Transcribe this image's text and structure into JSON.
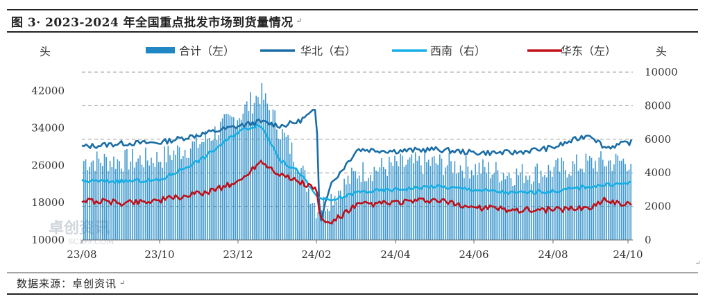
{
  "title": "图 3· 2023-2024 年全国重点批发市场到货量情况",
  "title_mark": "↵",
  "source": "数据来源：卓创资讯",
  "source_mark": "↵",
  "corner_mark": "↵",
  "watermark": {
    "text": "卓创资讯",
    "sub": "SCI99.COM"
  },
  "colors": {
    "total": "#1e87c4",
    "north": "#1a6da6",
    "southwest": "#15aee6",
    "east": "#c00f18",
    "grid": "#9a9a9a",
    "axis": "#666666"
  },
  "chart_data": {
    "type": "bar+line",
    "y_left": {
      "unit": "头",
      "ticks": [
        10000,
        18000,
        26000,
        34000,
        42000
      ],
      "range": [
        10000,
        46000
      ]
    },
    "y_right": {
      "unit": "头",
      "ticks": [
        0,
        2000,
        4000,
        6000,
        8000,
        10000
      ],
      "range": [
        0,
        10000
      ]
    },
    "x": {
      "labels": [
        "23/08",
        "23/10",
        "23/12",
        "24/02",
        "24/04",
        "24/06",
        "24/08",
        "24/10"
      ],
      "start": "2023-08",
      "end": "2024-10"
    },
    "grid": "horizontal dashed",
    "legend": {
      "placement": "top",
      "entries": [
        "合计（左）",
        "华北（右）",
        "西南（右）",
        "华东（左）"
      ]
    },
    "series": [
      {
        "name": "合计（左）",
        "axis": "left",
        "style": "bar",
        "points": [
          [
            "23/08",
            27000
          ],
          [
            "23/09",
            27000
          ],
          [
            "23/10",
            27500
          ],
          [
            "23/11",
            31000
          ],
          [
            "23/12",
            37000
          ],
          [
            "23/12b",
            41500
          ],
          [
            "24/01",
            33000
          ],
          [
            "24/01b",
            26500
          ],
          [
            "24/02",
            16500
          ],
          [
            "24/02b",
            19000
          ],
          [
            "24/03",
            24500
          ],
          [
            "24/04",
            26000
          ],
          [
            "24/05",
            26500
          ],
          [
            "24/06",
            25500
          ],
          [
            "24/07",
            24000
          ],
          [
            "24/08",
            25000
          ],
          [
            "24/09",
            26500
          ],
          [
            "24/10",
            27000
          ]
        ]
      },
      {
        "name": "华北（右）",
        "axis": "right",
        "style": "line",
        "points": [
          [
            "23/08",
            5550
          ],
          [
            "23/09",
            5750
          ],
          [
            "23/10",
            5800
          ],
          [
            "23/11",
            6300
          ],
          [
            "23/12",
            6800
          ],
          [
            "23/12b",
            7050
          ],
          [
            "24/01",
            6800
          ],
          [
            "24/01b",
            7050
          ],
          [
            "24/02",
            7750
          ],
          [
            "24/02a",
            1000
          ],
          [
            "24/02b",
            3200
          ],
          [
            "24/03",
            5400
          ],
          [
            "24/04",
            5300
          ],
          [
            "24/05",
            5400
          ],
          [
            "24/06",
            5200
          ],
          [
            "24/07",
            5200
          ],
          [
            "24/08",
            5500
          ],
          [
            "24/09",
            6300
          ],
          [
            "24/09b",
            5500
          ],
          [
            "24/10",
            5850
          ]
        ]
      },
      {
        "name": "西南（右）",
        "axis": "right",
        "style": "line",
        "points": [
          [
            "23/08",
            3500
          ],
          [
            "23/09",
            3500
          ],
          [
            "23/10",
            3550
          ],
          [
            "23/11",
            4800
          ],
          [
            "23/12",
            6500
          ],
          [
            "23/12b",
            6900
          ],
          [
            "24/01",
            4700
          ],
          [
            "24/01b",
            4100
          ],
          [
            "24/02",
            2600
          ],
          [
            "24/02b",
            2300
          ],
          [
            "24/03",
            2850
          ],
          [
            "24/04",
            3000
          ],
          [
            "24/05",
            3200
          ],
          [
            "24/06",
            3000
          ],
          [
            "24/07",
            2800
          ],
          [
            "24/08",
            2900
          ],
          [
            "24/09",
            3200
          ],
          [
            "24/10",
            3400
          ]
        ]
      },
      {
        "name": "华东（左）",
        "axis": "left",
        "style": "line",
        "points": [
          [
            "23/08",
            18500
          ],
          [
            "23/09",
            18000
          ],
          [
            "23/10",
            18500
          ],
          [
            "23/11",
            20000
          ],
          [
            "23/12",
            22500
          ],
          [
            "23/12b",
            27000
          ],
          [
            "24/01",
            24000
          ],
          [
            "24/01b",
            22500
          ],
          [
            "24/02",
            21000
          ],
          [
            "24/02a",
            14500
          ],
          [
            "24/02b",
            13500
          ],
          [
            "24/03",
            17500
          ],
          [
            "24/04",
            18000
          ],
          [
            "24/05",
            18500
          ],
          [
            "24/06",
            17000
          ],
          [
            "24/07",
            16500
          ],
          [
            "24/08",
            16500
          ],
          [
            "24/09",
            17000
          ],
          [
            "24/09b",
            18500
          ],
          [
            "24/10",
            17500
          ]
        ]
      }
    ]
  }
}
